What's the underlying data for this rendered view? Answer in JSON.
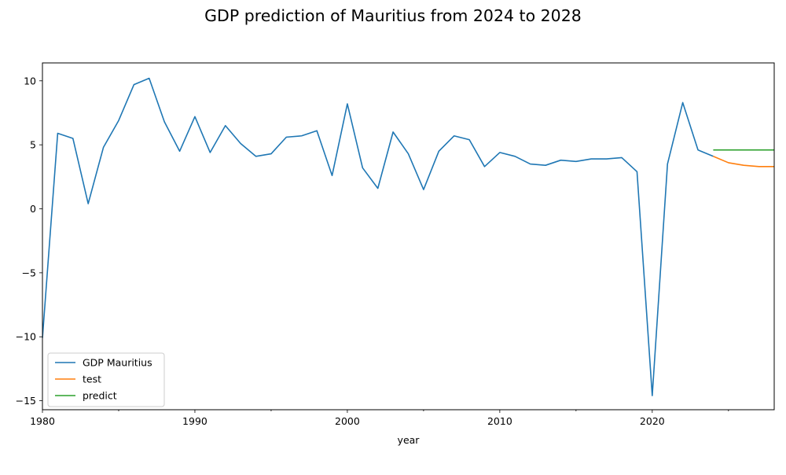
{
  "chart_data": {
    "type": "line",
    "title": "GDP prediction of Mauritius from 2024 to 2028",
    "xlabel": "year",
    "ylabel": "",
    "xlim": [
      1980,
      2028
    ],
    "ylim": [
      -15.7,
      11.4
    ],
    "grid": false,
    "legend_position": "lower-left",
    "x_ticks": [
      1980,
      1990,
      2000,
      2010,
      2020
    ],
    "y_ticks": [
      -15,
      -10,
      -5,
      0,
      5,
      10
    ],
    "series": [
      {
        "name": "GDP Mauritius",
        "color": "#1f77b4",
        "x": [
          1980,
          1981,
          1982,
          1983,
          1984,
          1985,
          1986,
          1987,
          1988,
          1989,
          1990,
          1991,
          1992,
          1993,
          1994,
          1995,
          1996,
          1997,
          1998,
          1999,
          2000,
          2001,
          2002,
          2003,
          2004,
          2005,
          2006,
          2007,
          2008,
          2009,
          2010,
          2011,
          2012,
          2013,
          2014,
          2015,
          2016,
          2017,
          2018,
          2019,
          2020,
          2021,
          2022,
          2023,
          2024
        ],
        "values": [
          -10.1,
          5.9,
          5.5,
          0.4,
          4.8,
          6.9,
          9.7,
          10.2,
          6.8,
          4.5,
          7.2,
          4.4,
          6.5,
          5.1,
          4.1,
          4.3,
          5.6,
          5.7,
          6.1,
          2.6,
          8.2,
          3.2,
          1.6,
          6.0,
          4.3,
          1.5,
          4.5,
          5.7,
          5.4,
          3.3,
          4.4,
          4.1,
          3.5,
          3.4,
          3.8,
          3.7,
          3.9,
          3.9,
          4.0,
          2.9,
          -14.6,
          3.5,
          8.3,
          4.6,
          4.1
        ]
      },
      {
        "name": "test",
        "color": "#ff7f0e",
        "x": [
          2024,
          2025,
          2026,
          2027,
          2028
        ],
        "values": [
          4.1,
          3.6,
          3.4,
          3.3,
          3.3
        ]
      },
      {
        "name": "predict",
        "color": "#2ca02c",
        "x": [
          2024,
          2025,
          2026,
          2027,
          2028
        ],
        "values": [
          4.6,
          4.6,
          4.6,
          4.6,
          4.6
        ]
      }
    ]
  }
}
